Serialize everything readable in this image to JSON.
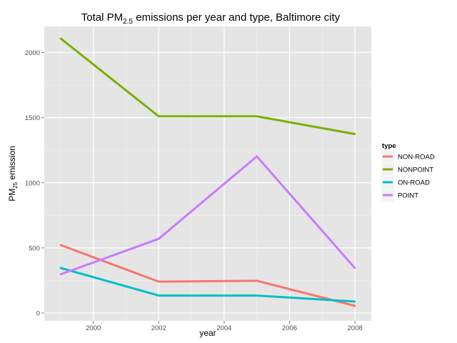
{
  "chart_data": {
    "type": "line",
    "title": {
      "main_before": "Total PM",
      "subscript": "2.5",
      "main_after": " emissions per year and type, Baltimore city"
    },
    "xlabel": "year",
    "ylabel": {
      "before": "PM",
      "subscript": "25",
      "after": " emission"
    },
    "x": [
      1999,
      2002,
      2005,
      2008
    ],
    "xlim": [
      1998.5,
      2008.5
    ],
    "ylim": [
      -60,
      2200
    ],
    "xticks": [
      2000,
      2002,
      2004,
      2006,
      2008
    ],
    "yticks": [
      0,
      500,
      1000,
      1500,
      2000
    ],
    "grid": true,
    "legend_position": "right",
    "legend_title": "type",
    "series": [
      {
        "name": "NON-ROAD",
        "color": "#F8766D",
        "values": [
          522,
          241,
          248,
          55
        ]
      },
      {
        "name": "NONPOINT",
        "color": "#7CAE00",
        "values": [
          2108,
          1510,
          1510,
          1374
        ]
      },
      {
        "name": "ON-ROAD",
        "color": "#00BFC4",
        "values": [
          346,
          134,
          134,
          88
        ]
      },
      {
        "name": "POINT",
        "color": "#C77CFF",
        "values": [
          297,
          570,
          1202,
          345
        ]
      }
    ]
  }
}
